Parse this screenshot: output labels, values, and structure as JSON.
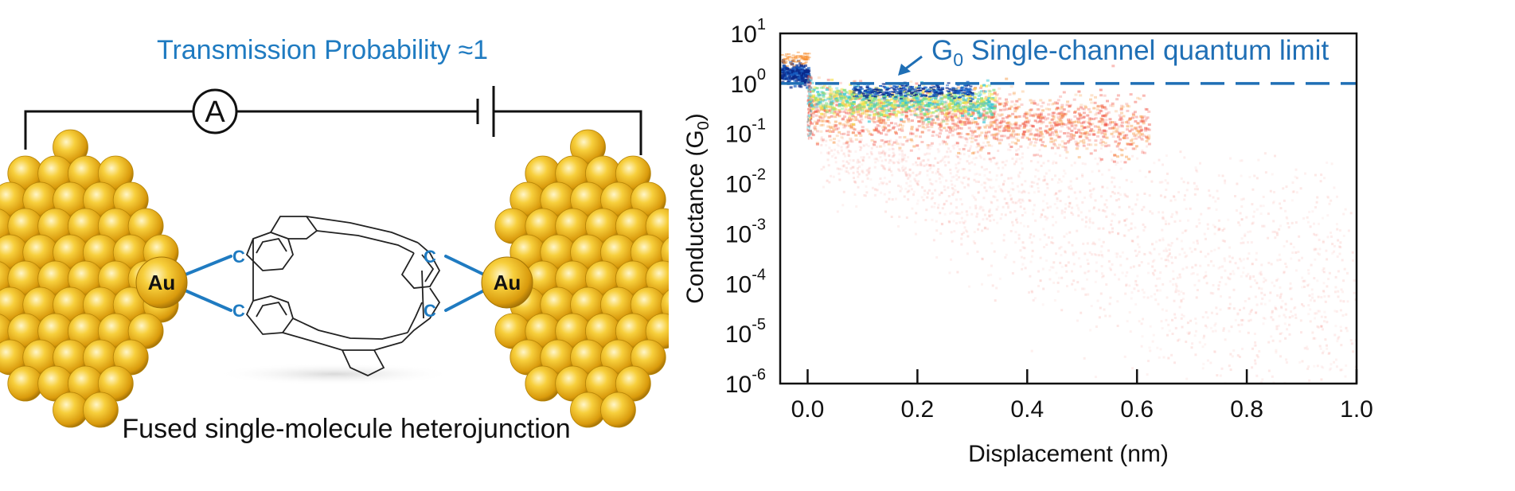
{
  "left_panel": {
    "title": "Transmission Probability ≈1",
    "ammeter_symbol": "A",
    "electrode_label_left": "Au",
    "electrode_label_right": "Au",
    "atom_label": "C",
    "caption": "Fused single-molecule heterojunction",
    "colors": {
      "title": "#1f7bc1",
      "bond": "#1f7bc1",
      "gold": "#e9b824"
    }
  },
  "chart_data": {
    "type": "heatmap",
    "title": "",
    "xlabel": "Displacement (nm)",
    "ylabel": "Conductance (G0)",
    "ylabel_parts": {
      "prefix": "Conductance (G",
      "sub": "0",
      "suffix": ")"
    },
    "xlim": [
      -0.05,
      1.0
    ],
    "ylim_log10": [
      -6,
      1
    ],
    "yscale": "log",
    "x_ticks": [
      0.0,
      0.2,
      0.4,
      0.6,
      0.8,
      1.0
    ],
    "x_tick_labels": [
      "0.0",
      "0.2",
      "0.4",
      "0.6",
      "0.8",
      "1.0"
    ],
    "y_tick_exponents": [
      1,
      0,
      -1,
      -2,
      -3,
      -4,
      -5,
      -6
    ],
    "y_tick_labels": [
      {
        "base": "10",
        "exp": "1"
      },
      {
        "base": "10",
        "exp": "0"
      },
      {
        "base": "10",
        "exp": "-1"
      },
      {
        "base": "10",
        "exp": "-2"
      },
      {
        "base": "10",
        "exp": "-3"
      },
      {
        "base": "10",
        "exp": "-4"
      },
      {
        "base": "10",
        "exp": "-5"
      },
      {
        "base": "10",
        "exp": "-6"
      }
    ],
    "reference_line": {
      "y": 1,
      "style": "dashed",
      "color": "#1f6fb5"
    },
    "annotation": {
      "prefix": "G",
      "sub": "0",
      "text": " Single-channel quantum limit",
      "color": "#1f6fb5"
    },
    "density_regions": [
      {
        "name": "gold-contact-plateau",
        "x_range": [
          -0.05,
          0.0
        ],
        "log10G_range": [
          0.1,
          0.6
        ],
        "level": "max"
      },
      {
        "name": "molecular-plateau-core",
        "x_range": [
          0.0,
          0.35
        ],
        "log10G_range": [
          -0.4,
          -0.05
        ],
        "level": "high"
      },
      {
        "name": "molecular-plateau",
        "x_range": [
          0.0,
          0.6
        ],
        "log10G_range": [
          -1.2,
          0.0
        ],
        "level": "medium"
      },
      {
        "name": "tail",
        "x_range": [
          0.3,
          1.0
        ],
        "log10G_range": [
          -5.8,
          -1.0
        ],
        "level": "low"
      }
    ],
    "colormap": [
      "#ffffff",
      "#f04a3c",
      "#f79236",
      "#f4e24a",
      "#7ee07e",
      "#2ec4d4",
      "#1a62c8",
      "#0a2a8a"
    ]
  }
}
